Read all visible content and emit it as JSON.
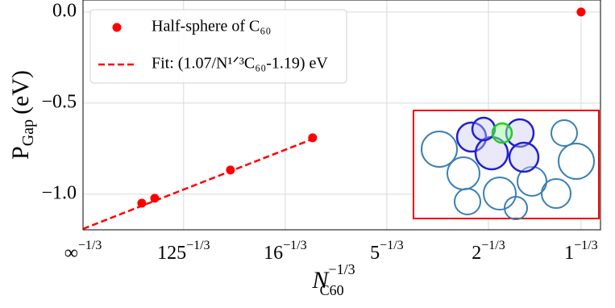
{
  "chart_data": {
    "type": "scatter",
    "ylabel": "P",
    "ylabel_sub": "Gap",
    "ylabel_unit": "(eV)",
    "xlabel": "N",
    "xlabel_sub": "C60",
    "xlabel_sup": "−1/3",
    "xlim": [
      0,
      1.039
    ],
    "ylim": [
      -1.195,
      0.066
    ],
    "xtick_exponent": "−1/3",
    "xticks": [
      {
        "value": 0,
        "label": "∞"
      },
      {
        "value": 0.202,
        "label": "125"
      },
      {
        "value": 0.406,
        "label": "16"
      },
      {
        "value": 0.61,
        "label": "5"
      },
      {
        "value": 0.814,
        "label": "2"
      },
      {
        "value": 1,
        "label": "1"
      }
    ],
    "yticks": [
      {
        "value": 0,
        "label": "0.0"
      },
      {
        "value": -0.5,
        "label": "−0.5"
      },
      {
        "value": -1,
        "label": "−1.0"
      }
    ],
    "grid": true,
    "legend": "upper left",
    "series": [
      {
        "name": "Half-sphere of C₆₀",
        "color": "#ff0000",
        "mode": "markers",
        "x": [
          0.118,
          0.144,
          0.296,
          0.461,
          1.0
        ],
        "values": [
          -1.049,
          -1.022,
          -0.867,
          -0.69,
          0.0
        ]
      },
      {
        "name": "Fit: (1.07/N¹ᐟ³C₆₀-1.19) eV",
        "color": "#ff0000",
        "mode": "dashed-line",
        "x": [
          0,
          0.461
        ],
        "values": [
          -1.19,
          -0.697
        ]
      }
    ]
  }
}
